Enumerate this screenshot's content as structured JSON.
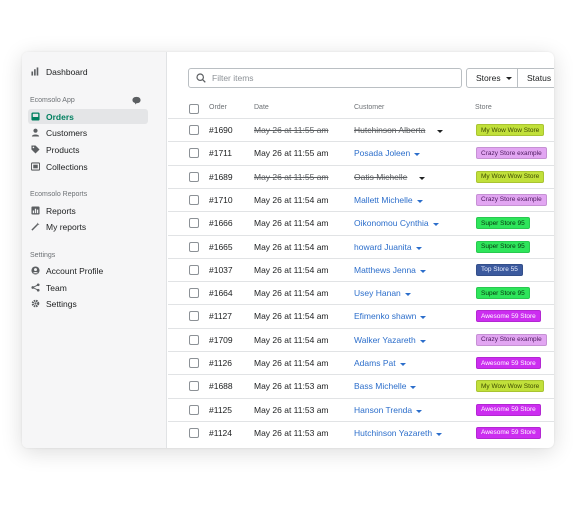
{
  "sidebar": {
    "dashboard": "Dashboard",
    "app_section": "Ecomsolo App",
    "orders": "Orders",
    "customers": "Customers",
    "products": "Products",
    "collections": "Collections",
    "reports_section": "Ecomsolo Reports",
    "reports": "Reports",
    "my_reports": "My reports",
    "settings_section": "Settings",
    "account_profile": "Account Profile",
    "team": "Team",
    "settings": "Settings"
  },
  "toolbar": {
    "search_placeholder": "Filter items",
    "stores_label": "Stores",
    "status_label": "Status"
  },
  "columns": {
    "order": "Order",
    "date": "Date",
    "customer": "Customer",
    "store": "Store"
  },
  "stores": {
    "wow": {
      "name": "My Wow Wow Store",
      "bg": "#c1e03a",
      "fg": "#3d4a00"
    },
    "crazy": {
      "name": "Crazy Store example",
      "bg": "#e2a6f2",
      "fg": "#4d1a5e"
    },
    "super95": {
      "name": "Super Store 95",
      "bg": "#2ee55b",
      "fg": "#07350f"
    },
    "top": {
      "name": "Top Store 55",
      "bg": "#3c5a9e",
      "fg": "#e8eeff"
    },
    "awesome": {
      "name": "Awesome 59 Store",
      "bg": "#cc2df0",
      "fg": "#ffffff"
    }
  },
  "rows": [
    {
      "order": "#1690",
      "date": "May 26 at 11:55 am",
      "customer": "Hutchinson Alberta",
      "store": "wow",
      "struck": true
    },
    {
      "order": "#1711",
      "date": "May 26 at 11:55 am",
      "customer": "Posada Joleen",
      "store": "crazy",
      "struck": false
    },
    {
      "order": "#1689",
      "date": "May 26 at 11:55 am",
      "customer": "Oatis Michelle",
      "store": "wow",
      "struck": true
    },
    {
      "order": "#1710",
      "date": "May 26 at 11:54 am",
      "customer": "Mallett Michelle",
      "store": "crazy",
      "struck": false
    },
    {
      "order": "#1666",
      "date": "May 26 at 11:54 am",
      "customer": "Oikonomou Cynthia",
      "store": "super95",
      "struck": false
    },
    {
      "order": "#1665",
      "date": "May 26 at 11:54 am",
      "customer": "howard Juanita",
      "store": "super95",
      "struck": false
    },
    {
      "order": "#1037",
      "date": "May 26 at 11:54 am",
      "customer": "Matthews Jenna",
      "store": "top",
      "struck": false
    },
    {
      "order": "#1664",
      "date": "May 26 at 11:54 am",
      "customer": "Usey Hanan",
      "store": "super95",
      "struck": false
    },
    {
      "order": "#1127",
      "date": "May 26 at 11:54 am",
      "customer": "Efimenko shawn",
      "store": "awesome",
      "struck": false
    },
    {
      "order": "#1709",
      "date": "May 26 at 11:54 am",
      "customer": "Walker Yazareth",
      "store": "crazy",
      "struck": false
    },
    {
      "order": "#1126",
      "date": "May 26 at 11:54 am",
      "customer": "Adams Pat",
      "store": "awesome",
      "struck": false
    },
    {
      "order": "#1688",
      "date": "May 26 at 11:53 am",
      "customer": "Bass Michelle",
      "store": "wow",
      "struck": false
    },
    {
      "order": "#1125",
      "date": "May 26 at 11:53 am",
      "customer": "Hanson Trenda",
      "store": "awesome",
      "struck": false
    },
    {
      "order": "#1124",
      "date": "May 26 at 11:53 am",
      "customer": "Hutchinson Yazareth",
      "store": "awesome",
      "struck": false
    }
  ]
}
